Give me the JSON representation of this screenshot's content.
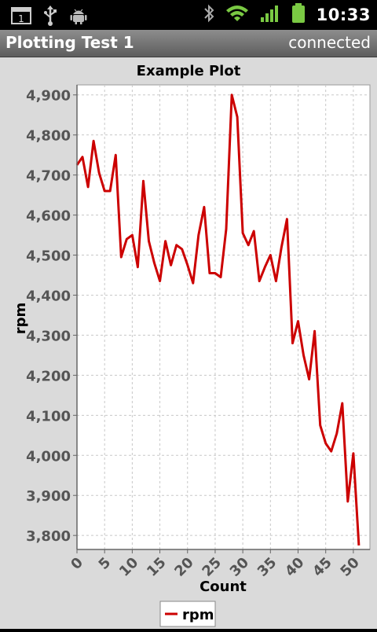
{
  "status_bar": {
    "time": "10:33",
    "notification_count": "1",
    "icons": [
      "notification-icon",
      "usb-icon",
      "android-debug-icon",
      "bluetooth-icon",
      "wifi-icon",
      "signal-icon",
      "battery-icon"
    ]
  },
  "app": {
    "title": "Plotting Test 1",
    "connection_status": "connected"
  },
  "chart_data": {
    "type": "line",
    "title": "Example Plot",
    "xlabel": "Count",
    "ylabel": "rpm",
    "xlim": [
      0,
      53
    ],
    "ylim": [
      3765,
      4925
    ],
    "xticks": [
      0,
      5,
      10,
      15,
      20,
      25,
      30,
      35,
      40,
      45,
      50
    ],
    "xtick_labels": [
      "0",
      "5",
      "10",
      "15",
      "20",
      "25",
      "30",
      "35",
      "40",
      "45",
      "50"
    ],
    "yticks": [
      3800,
      3900,
      4000,
      4100,
      4200,
      4300,
      4400,
      4500,
      4600,
      4700,
      4800,
      4900
    ],
    "ytick_labels": [
      "3,800",
      "3,900",
      "4,000",
      "4,100",
      "4,200",
      "4,300",
      "4,400",
      "4,500",
      "4,600",
      "4,700",
      "4,800",
      "4,900"
    ],
    "grid": true,
    "legend_position": "bottom-left",
    "series": [
      {
        "name": "rpm",
        "color": "#cc0000",
        "x": [
          0,
          1,
          2,
          3,
          4,
          5,
          6,
          7,
          8,
          9,
          10,
          11,
          12,
          13,
          14,
          15,
          16,
          17,
          18,
          19,
          20,
          21,
          22,
          23,
          24,
          25,
          26,
          27,
          28,
          29,
          30,
          31,
          32,
          33,
          34,
          35,
          36,
          37,
          38,
          39,
          40,
          41,
          42,
          43,
          44,
          45,
          46,
          47,
          48,
          49,
          50,
          51
        ],
        "y": [
          4725,
          4745,
          4670,
          4785,
          4705,
          4660,
          4660,
          4750,
          4495,
          4540,
          4550,
          4470,
          4685,
          4535,
          4480,
          4435,
          4535,
          4475,
          4525,
          4515,
          4475,
          4430,
          4550,
          4620,
          4455,
          4455,
          4445,
          4565,
          4900,
          4845,
          4555,
          4525,
          4560,
          4435,
          4470,
          4500,
          4435,
          4520,
          4590,
          4280,
          4335,
          4250,
          4190,
          4310,
          4075,
          4030,
          4010,
          4055,
          4130,
          3885,
          4005,
          3775
        ]
      }
    ]
  }
}
